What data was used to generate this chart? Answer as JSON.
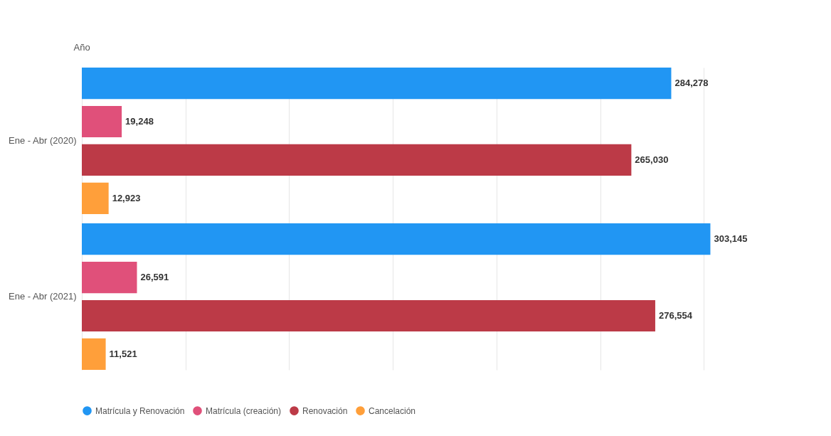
{
  "chart_data": {
    "type": "bar",
    "orientation": "horizontal",
    "ylabel": "Año",
    "categories": [
      "Ene - Abr (2020)",
      "Ene - Abr (2021)"
    ],
    "series": [
      {
        "name": "Matrícula y Renovación",
        "color": "#2196f3",
        "values": [
          284278,
          303145
        ],
        "value_labels": [
          "284,278",
          "303,145"
        ]
      },
      {
        "name": "Matrícula (creación)",
        "color": "#e0507a",
        "values": [
          19248,
          26591
        ],
        "value_labels": [
          "19,248",
          "26,591"
        ]
      },
      {
        "name": "Renovación",
        "color": "#bc3a47",
        "values": [
          265030,
          276554
        ],
        "value_labels": [
          "265,030",
          "276,554"
        ]
      },
      {
        "name": "Cancelación",
        "color": "#ff9f3a",
        "values": [
          12923,
          11521
        ],
        "value_labels": [
          "12,923",
          "11,521"
        ]
      }
    ],
    "grid": "x",
    "legend": "bottom",
    "tick_labels": "y"
  }
}
